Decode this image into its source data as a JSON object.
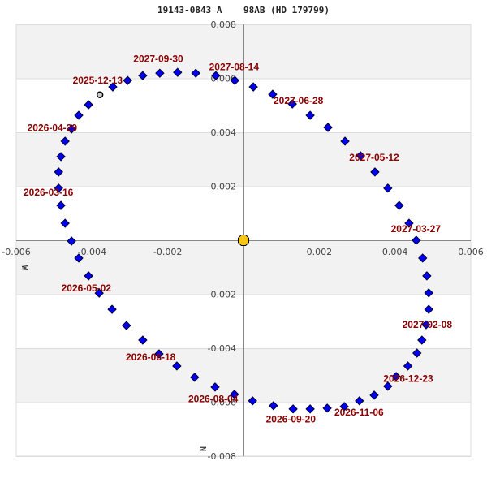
{
  "title": "19143-0843 A    98AB (HD 179799)",
  "colors": {
    "band_gray": "#f2f2f2",
    "band_white": "#ffffff",
    "grid": "#dddddd",
    "axis": "#888888",
    "point_fill": "#0000ee",
    "point_stroke": "#000033",
    "current_point_fill": "#cccccc",
    "primary_fill": "#f5c518",
    "label": "#8b0000"
  },
  "chart_data": {
    "type": "scatter",
    "title": "19143-0843 A    98AB (HD 179799)",
    "xlabel": "",
    "ylabel": "",
    "direction_labels": {
      "west": "W",
      "north": "N"
    },
    "xlim": [
      -0.006,
      0.006
    ],
    "ylim": [
      -0.008,
      0.008
    ],
    "x_ticks": [
      -0.006,
      -0.004,
      -0.002,
      0.002,
      0.004,
      0.006
    ],
    "x_tick_labels": [
      "-0.006",
      "-0.004",
      "-0.002",
      "0.002",
      "0.004",
      "0.006"
    ],
    "y_ticks": [
      0.008,
      0.006,
      0.004,
      0.002,
      -0.002,
      -0.004,
      -0.006,
      -0.008
    ],
    "y_tick_labels": [
      "0.008",
      "0.006",
      "0.004",
      "0.002",
      "-0.002",
      "-0.004",
      "-0.006",
      "-0.008"
    ],
    "grid": true,
    "primary": {
      "x": 0,
      "y": 0,
      "marker": "octagon",
      "color": "#f5c518"
    },
    "current_position": {
      "x": -0.00379,
      "y": 0.00539,
      "date": "2025-12-13"
    },
    "orbit_points": [
      {
        "x": -0.00345,
        "y": 0.00568
      },
      {
        "x": -0.00306,
        "y": 0.00592
      },
      {
        "x": -0.00266,
        "y": 0.0061
      },
      {
        "x": -0.00221,
        "y": 0.00619
      },
      {
        "x": -0.00174,
        "y": 0.00622
      },
      {
        "x": -0.00126,
        "y": 0.00619
      },
      {
        "x": -0.00073,
        "y": 0.0061
      },
      {
        "x": -0.00023,
        "y": 0.00592
      },
      {
        "x": 0.00026,
        "y": 0.00568
      },
      {
        "x": 0.00077,
        "y": 0.00541
      },
      {
        "x": 0.00129,
        "y": 0.00505
      },
      {
        "x": 0.00176,
        "y": 0.00463
      },
      {
        "x": 0.00223,
        "y": 0.00418
      },
      {
        "x": 0.00268,
        "y": 0.00367
      },
      {
        "x": 0.00309,
        "y": 0.00313
      },
      {
        "x": 0.00347,
        "y": 0.00253
      },
      {
        "x": 0.00381,
        "y": 0.00193
      },
      {
        "x": 0.00411,
        "y": 0.00129
      },
      {
        "x": 0.00437,
        "y": 0.00063
      },
      {
        "x": 0.00456,
        "y": 0.0
      },
      {
        "x": 0.00473,
        "y": -0.00066
      },
      {
        "x": 0.00484,
        "y": -0.00132
      },
      {
        "x": 0.00489,
        "y": -0.00195
      },
      {
        "x": 0.00489,
        "y": -0.00256
      },
      {
        "x": 0.00482,
        "y": -0.00313
      },
      {
        "x": 0.00471,
        "y": -0.0037
      },
      {
        "x": 0.00458,
        "y": -0.00418
      },
      {
        "x": 0.00434,
        "y": -0.00466
      },
      {
        "x": 0.00403,
        "y": -0.00505
      },
      {
        "x": 0.00381,
        "y": -0.00541
      },
      {
        "x": 0.00345,
        "y": -0.00574
      },
      {
        "x": 0.00306,
        "y": -0.00595
      },
      {
        "x": 0.00266,
        "y": -0.00616
      },
      {
        "x": 0.00221,
        "y": -0.00622
      },
      {
        "x": 0.00176,
        "y": -0.00625
      },
      {
        "x": 0.00131,
        "y": -0.00625
      },
      {
        "x": 0.00079,
        "y": -0.00613
      },
      {
        "x": 0.00024,
        "y": -0.00595
      },
      {
        "x": -0.00024,
        "y": -0.00571
      },
      {
        "x": -0.00075,
        "y": -0.00544
      },
      {
        "x": -0.00129,
        "y": -0.00508
      },
      {
        "x": -0.00176,
        "y": -0.00466
      },
      {
        "x": -0.00223,
        "y": -0.00421
      },
      {
        "x": -0.00266,
        "y": -0.0037
      },
      {
        "x": -0.00309,
        "y": -0.00316
      },
      {
        "x": -0.00347,
        "y": -0.00256
      },
      {
        "x": -0.00381,
        "y": -0.00196
      },
      {
        "x": -0.00409,
        "y": -0.00132
      },
      {
        "x": -0.00435,
        "y": -0.00066
      },
      {
        "x": -0.00454,
        "y": -3e-05
      },
      {
        "x": -0.00471,
        "y": 0.00063
      },
      {
        "x": -0.00482,
        "y": 0.00129
      },
      {
        "x": -0.00488,
        "y": 0.00193
      },
      {
        "x": -0.00488,
        "y": 0.00253
      },
      {
        "x": -0.00482,
        "y": 0.0031
      },
      {
        "x": -0.00471,
        "y": 0.00367
      },
      {
        "x": -0.00454,
        "y": 0.00412
      },
      {
        "x": -0.00435,
        "y": 0.00463
      },
      {
        "x": -0.00409,
        "y": 0.00502
      }
    ],
    "date_labels": [
      {
        "text": "2027-09-30",
        "x": -0.00225,
        "y": 0.0066
      },
      {
        "text": "2027-08-14",
        "x": -0.00025,
        "y": 0.0063
      },
      {
        "text": "2025-12-13",
        "x": -0.00385,
        "y": 0.0058
      },
      {
        "text": "2027-06-28",
        "x": 0.00145,
        "y": 0.00505
      },
      {
        "text": "2026-04-29",
        "x": -0.00505,
        "y": 0.00405
      },
      {
        "text": "2027-05-12",
        "x": 0.00345,
        "y": 0.00295
      },
      {
        "text": "2026-03-16",
        "x": -0.00515,
        "y": 0.00165
      },
      {
        "text": "2027-03-27",
        "x": 0.00455,
        "y": 0.0003
      },
      {
        "text": "2026-05-02",
        "x": -0.00415,
        "y": -0.0019
      },
      {
        "text": "2027-02-08",
        "x": 0.00485,
        "y": -0.00325
      },
      {
        "text": "2026-06-18",
        "x": -0.00245,
        "y": -0.00445
      },
      {
        "text": "2026-12-23",
        "x": 0.00435,
        "y": -0.00525
      },
      {
        "text": "2026-08-04",
        "x": -0.0008,
        "y": -0.006
      },
      {
        "text": "2026-09-20",
        "x": 0.00125,
        "y": -0.00675
      },
      {
        "text": "2026-11-06",
        "x": 0.00305,
        "y": -0.0065
      }
    ]
  }
}
